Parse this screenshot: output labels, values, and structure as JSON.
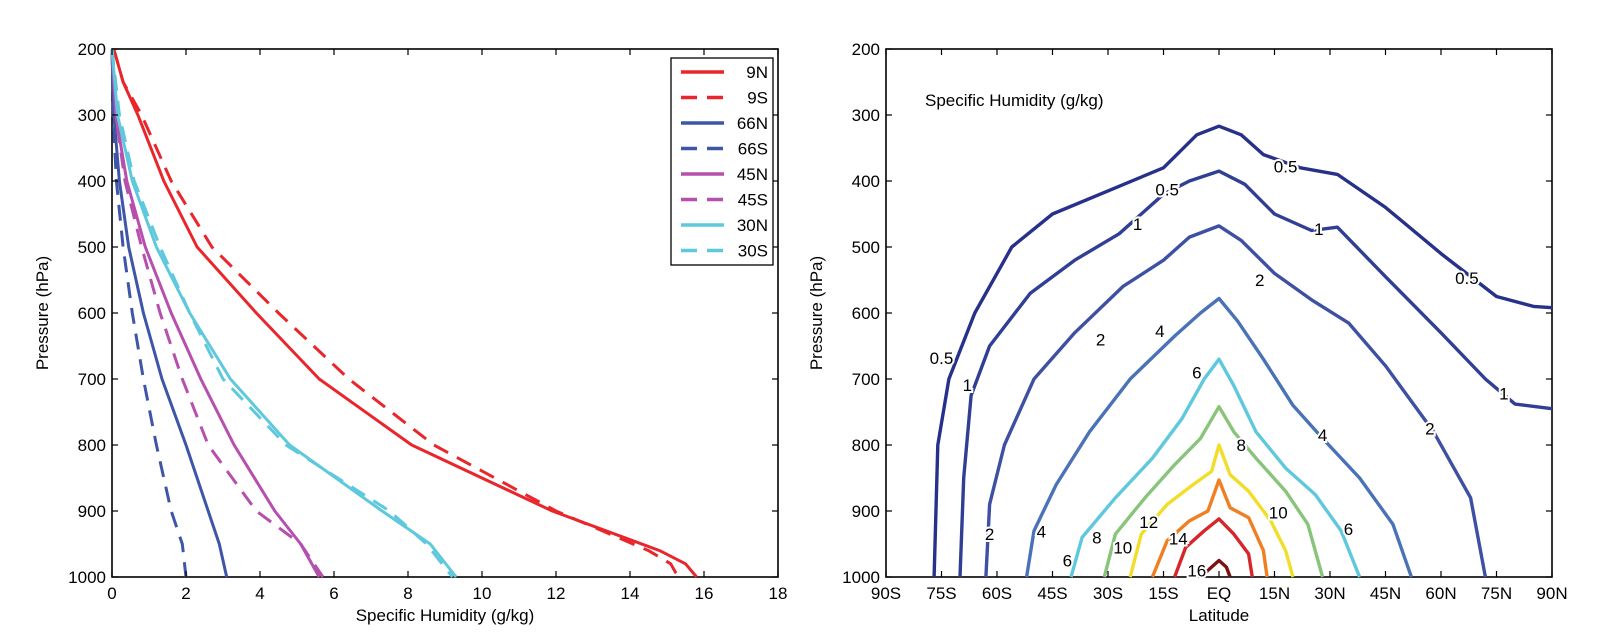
{
  "colors": {
    "9N": "#e8262b",
    "9S": "#e8262b",
    "66N": "#3e55a8",
    "66S": "#3e55a8",
    "45N": "#b64fae",
    "45S": "#b64fae",
    "30N": "#5ec8dd",
    "30S": "#5ec8dd"
  },
  "chart_data": [
    {
      "type": "line",
      "xlabel": "Specific Humidity (g/kg)",
      "ylabel": "Pressure (hPa)",
      "xlim": [
        0,
        18
      ],
      "ylim": [
        1000,
        200
      ],
      "y_axis_inverted": true,
      "xticks": [
        "0",
        "2",
        "4",
        "6",
        "8",
        "10",
        "12",
        "14",
        "16",
        "18"
      ],
      "yticks": [
        "200",
        "300",
        "400",
        "500",
        "600",
        "700",
        "800",
        "900",
        "1000"
      ],
      "legend_position": "top-right",
      "grid": false,
      "series": [
        {
          "name": "9N",
          "style": "solid",
          "points": [
            [
              0.05,
              200
            ],
            [
              0.3,
              250
            ],
            [
              0.7,
              300
            ],
            [
              1.4,
              400
            ],
            [
              2.3,
              500
            ],
            [
              3.9,
              600
            ],
            [
              5.6,
              700
            ],
            [
              8.1,
              800
            ],
            [
              11.9,
              900
            ],
            [
              14.8,
              960
            ],
            [
              15.5,
              980
            ],
            [
              15.8,
              1000
            ]
          ]
        },
        {
          "name": "9S",
          "style": "dashed",
          "points": [
            [
              0.05,
              200
            ],
            [
              0.3,
              250
            ],
            [
              0.8,
              300
            ],
            [
              1.6,
              400
            ],
            [
              2.7,
              500
            ],
            [
              4.5,
              600
            ],
            [
              6.4,
              700
            ],
            [
              8.7,
              800
            ],
            [
              12.0,
              900
            ],
            [
              14.5,
              960
            ],
            [
              15.1,
              980
            ],
            [
              15.3,
              1000
            ]
          ]
        },
        {
          "name": "66N",
          "style": "solid",
          "points": [
            [
              0.0,
              200
            ],
            [
              0.05,
              300
            ],
            [
              0.2,
              400
            ],
            [
              0.45,
              500
            ],
            [
              0.85,
              600
            ],
            [
              1.35,
              700
            ],
            [
              2.0,
              800
            ],
            [
              2.6,
              900
            ],
            [
              2.9,
              950
            ],
            [
              3.1,
              1000
            ]
          ]
        },
        {
          "name": "66S",
          "style": "dashed",
          "points": [
            [
              0.0,
              200
            ],
            [
              0.03,
              300
            ],
            [
              0.12,
              400
            ],
            [
              0.3,
              500
            ],
            [
              0.55,
              600
            ],
            [
              0.85,
              700
            ],
            [
              1.2,
              800
            ],
            [
              1.6,
              900
            ],
            [
              1.9,
              950
            ],
            [
              2.0,
              1000
            ]
          ]
        },
        {
          "name": "45N",
          "style": "solid",
          "points": [
            [
              0.0,
              200
            ],
            [
              0.1,
              300
            ],
            [
              0.4,
              400
            ],
            [
              0.9,
              500
            ],
            [
              1.6,
              600
            ],
            [
              2.4,
              700
            ],
            [
              3.3,
              800
            ],
            [
              4.4,
              900
            ],
            [
              5.1,
              950
            ],
            [
              5.6,
              1000
            ]
          ]
        },
        {
          "name": "45S",
          "style": "dashed",
          "points": [
            [
              0.0,
              200
            ],
            [
              0.1,
              300
            ],
            [
              0.35,
              400
            ],
            [
              0.8,
              500
            ],
            [
              1.3,
              600
            ],
            [
              1.9,
              700
            ],
            [
              2.6,
              800
            ],
            [
              3.9,
              900
            ],
            [
              5.1,
              950
            ],
            [
              5.7,
              1000
            ]
          ]
        },
        {
          "name": "30N",
          "style": "solid",
          "points": [
            [
              0.0,
              200
            ],
            [
              0.15,
              300
            ],
            [
              0.55,
              400
            ],
            [
              1.2,
              500
            ],
            [
              2.1,
              600
            ],
            [
              3.2,
              700
            ],
            [
              4.8,
              800
            ],
            [
              7.3,
              900
            ],
            [
              8.6,
              950
            ],
            [
              9.3,
              1000
            ]
          ]
        },
        {
          "name": "30S",
          "style": "dashed",
          "points": [
            [
              0.0,
              200
            ],
            [
              0.2,
              300
            ],
            [
              0.6,
              400
            ],
            [
              1.3,
              500
            ],
            [
              2.1,
              600
            ],
            [
              3.0,
              700
            ],
            [
              4.7,
              800
            ],
            [
              7.5,
              900
            ],
            [
              8.5,
              950
            ],
            [
              9.2,
              1000
            ]
          ]
        }
      ]
    },
    {
      "type": "contour",
      "title": "Specific Humidity (g/kg)",
      "xlabel": "Latitude",
      "ylabel": "Pressure (hPa)",
      "xlim": [
        -90,
        90
      ],
      "ylim": [
        1000,
        200
      ],
      "y_axis_inverted": true,
      "xticks": [
        "90S",
        "75S",
        "60S",
        "45S",
        "30S",
        "15S",
        "EQ",
        "15N",
        "30N",
        "45N",
        "60N",
        "75N",
        "90N"
      ],
      "yticks": [
        "200",
        "300",
        "400",
        "500",
        "600",
        "700",
        "800",
        "900",
        "1000"
      ],
      "levels": [
        {
          "value": 0.5,
          "color": "#27318a",
          "points": [
            [
              -77,
              1000
            ],
            [
              -76,
              800
            ],
            [
              -73,
              700
            ],
            [
              -66,
              600
            ],
            [
              -56,
              500
            ],
            [
              -45,
              450
            ],
            [
              -30,
              415
            ],
            [
              -15,
              380
            ],
            [
              -6,
              330
            ],
            [
              0,
              317
            ],
            [
              6,
              330
            ],
            [
              12,
              360
            ],
            [
              22,
              380
            ],
            [
              32,
              390
            ],
            [
              45,
              440
            ],
            [
              60,
              510
            ],
            [
              75,
              575
            ],
            [
              85,
              590
            ],
            [
              90,
              592
            ]
          ]
        },
        {
          "value": 1,
          "color": "#303f93",
          "points": [
            [
              -70,
              1000
            ],
            [
              -69,
              850
            ],
            [
              -67,
              725
            ],
            [
              -62,
              650
            ],
            [
              -51,
              570
            ],
            [
              -39,
              520
            ],
            [
              -27,
              480
            ],
            [
              -15,
              420
            ],
            [
              -8,
              400
            ],
            [
              0,
              385
            ],
            [
              7,
              405
            ],
            [
              15,
              450
            ],
            [
              25,
              475
            ],
            [
              32,
              470
            ],
            [
              45,
              545
            ],
            [
              60,
              630
            ],
            [
              72,
              700
            ],
            [
              80,
              738
            ],
            [
              90,
              745
            ]
          ]
        },
        {
          "value": 2,
          "color": "#3d50a2",
          "points": [
            [
              -63,
              1000
            ],
            [
              -62,
              890
            ],
            [
              -58,
              800
            ],
            [
              -50,
              700
            ],
            [
              -39,
              630
            ],
            [
              -26,
              560
            ],
            [
              -15,
              520
            ],
            [
              -8,
              485
            ],
            [
              0,
              468
            ],
            [
              6,
              490
            ],
            [
              15,
              540
            ],
            [
              25,
              580
            ],
            [
              35,
              615
            ],
            [
              45,
              680
            ],
            [
              58,
              780
            ],
            [
              68,
              880
            ],
            [
              72,
              1000
            ]
          ]
        },
        {
          "value": 4,
          "color": "#4a72b6",
          "points": [
            [
              -52,
              1000
            ],
            [
              -50,
              930
            ],
            [
              -44,
              860
            ],
            [
              -35,
              780
            ],
            [
              -24,
              700
            ],
            [
              -12,
              635
            ],
            [
              -5,
              600
            ],
            [
              0,
              578
            ],
            [
              5,
              612
            ],
            [
              12,
              670
            ],
            [
              20,
              740
            ],
            [
              28,
              790
            ],
            [
              38,
              850
            ],
            [
              47,
              920
            ],
            [
              52,
              1000
            ]
          ]
        },
        {
          "value": 6,
          "color": "#5ec8dd",
          "points": [
            [
              -40,
              1000
            ],
            [
              -37,
              940
            ],
            [
              -28,
              880
            ],
            [
              -18,
              820
            ],
            [
              -10,
              760
            ],
            [
              -4,
              700
            ],
            [
              0,
              670
            ],
            [
              4,
              710
            ],
            [
              10,
              780
            ],
            [
              18,
              835
            ],
            [
              26,
              875
            ],
            [
              33,
              930
            ],
            [
              38,
              1000
            ]
          ]
        },
        {
          "value": 8,
          "color": "#88c47a",
          "points": [
            [
              -31,
              1000
            ],
            [
              -28,
              935
            ],
            [
              -20,
              880
            ],
            [
              -12,
              830
            ],
            [
              -5,
              790
            ],
            [
              0,
              742
            ],
            [
              4,
              780
            ],
            [
              10,
              820
            ],
            [
              18,
              870
            ],
            [
              24,
              920
            ],
            [
              28,
              1000
            ]
          ]
        },
        {
          "value": 10,
          "color": "#f2de2a",
          "points": [
            [
              -24,
              1000
            ],
            [
              -21,
              935
            ],
            [
              -14,
              890
            ],
            [
              -7,
              860
            ],
            [
              -2,
              840
            ],
            [
              0,
              800
            ],
            [
              3,
              845
            ],
            [
              8,
              870
            ],
            [
              14,
              915
            ],
            [
              18,
              960
            ],
            [
              20,
              1000
            ]
          ]
        },
        {
          "value": 12,
          "color": "#f07f24",
          "points": [
            [
              -18,
              1000
            ],
            [
              -14,
              945
            ],
            [
              -8,
              915
            ],
            [
              -3,
              900
            ],
            [
              0,
              853
            ],
            [
              3,
              895
            ],
            [
              8,
              910
            ],
            [
              12,
              960
            ],
            [
              13,
              1000
            ]
          ]
        },
        {
          "value": 14,
          "color": "#d6262a",
          "points": [
            [
              -12,
              1000
            ],
            [
              -9,
              955
            ],
            [
              -4,
              930
            ],
            [
              0,
              912
            ],
            [
              4,
              935
            ],
            [
              8,
              965
            ],
            [
              9,
              1000
            ]
          ]
        },
        {
          "value": 16,
          "color": "#7a1214",
          "points": [
            [
              -5,
              1000
            ],
            [
              -3,
              990
            ],
            [
              0,
              975
            ],
            [
              2,
              985
            ],
            [
              3,
              1000
            ]
          ]
        }
      ]
    }
  ],
  "contour_labels": [
    {
      "text": "0.5",
      "lat": -14,
      "p": 413
    },
    {
      "text": "0.5",
      "lat": 18,
      "p": 378
    },
    {
      "text": "0.5",
      "lat": 67,
      "p": 547
    },
    {
      "text": "0.5",
      "lat": -75,
      "p": 668
    },
    {
      "text": "1",
      "lat": -22,
      "p": 465
    },
    {
      "text": "1",
      "lat": 27,
      "p": 473
    },
    {
      "text": "1",
      "lat": -68,
      "p": 709
    },
    {
      "text": "1",
      "lat": 77,
      "p": 722
    },
    {
      "text": "2",
      "lat": 11,
      "p": 550
    },
    {
      "text": "2",
      "lat": -32,
      "p": 640
    },
    {
      "text": "2",
      "lat": 57,
      "p": 775
    },
    {
      "text": "2",
      "lat": -62,
      "p": 935
    },
    {
      "text": "4",
      "lat": -16,
      "p": 627
    },
    {
      "text": "4",
      "lat": 28,
      "p": 785
    },
    {
      "text": "4",
      "lat": -48,
      "p": 931
    },
    {
      "text": "6",
      "lat": -6,
      "p": 690
    },
    {
      "text": "6",
      "lat": 35,
      "p": 927
    },
    {
      "text": "6",
      "lat": -41,
      "p": 975
    },
    {
      "text": "8",
      "lat": 6,
      "p": 800
    },
    {
      "text": "8",
      "lat": -33,
      "p": 940
    },
    {
      "text": "10",
      "lat": 16,
      "p": 902
    },
    {
      "text": "10",
      "lat": -26,
      "p": 955
    },
    {
      "text": "12",
      "lat": -19,
      "p": 917
    },
    {
      "text": "14",
      "lat": -11,
      "p": 942
    },
    {
      "text": "16",
      "lat": -6,
      "p": 990
    }
  ]
}
